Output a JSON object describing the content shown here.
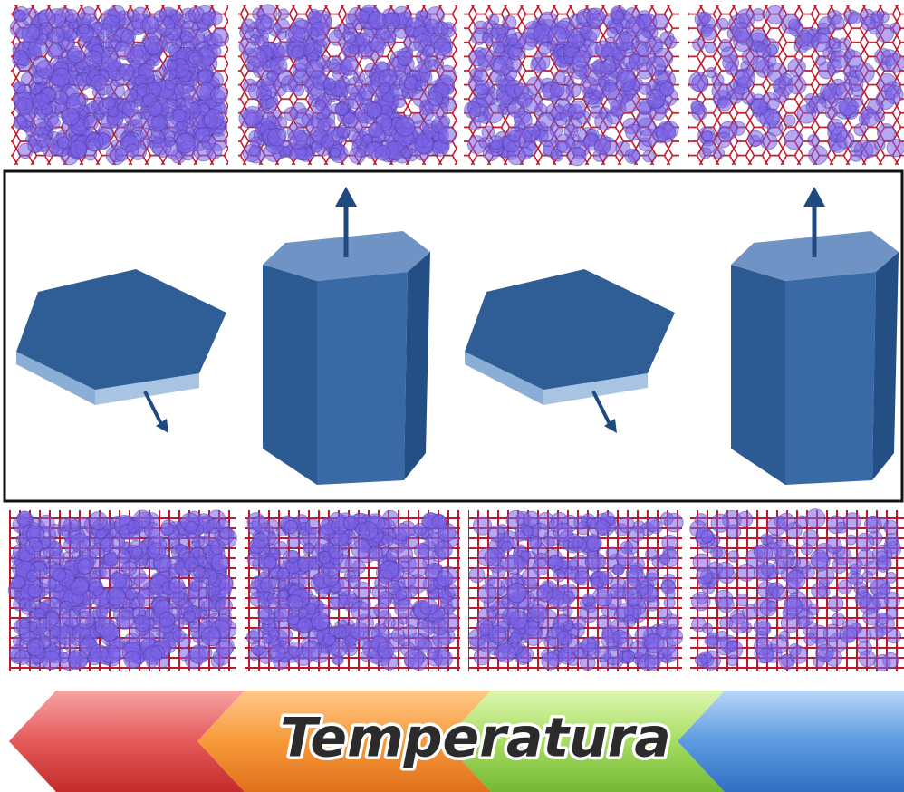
{
  "arrow": {
    "label": "Temperatura"
  }
}
